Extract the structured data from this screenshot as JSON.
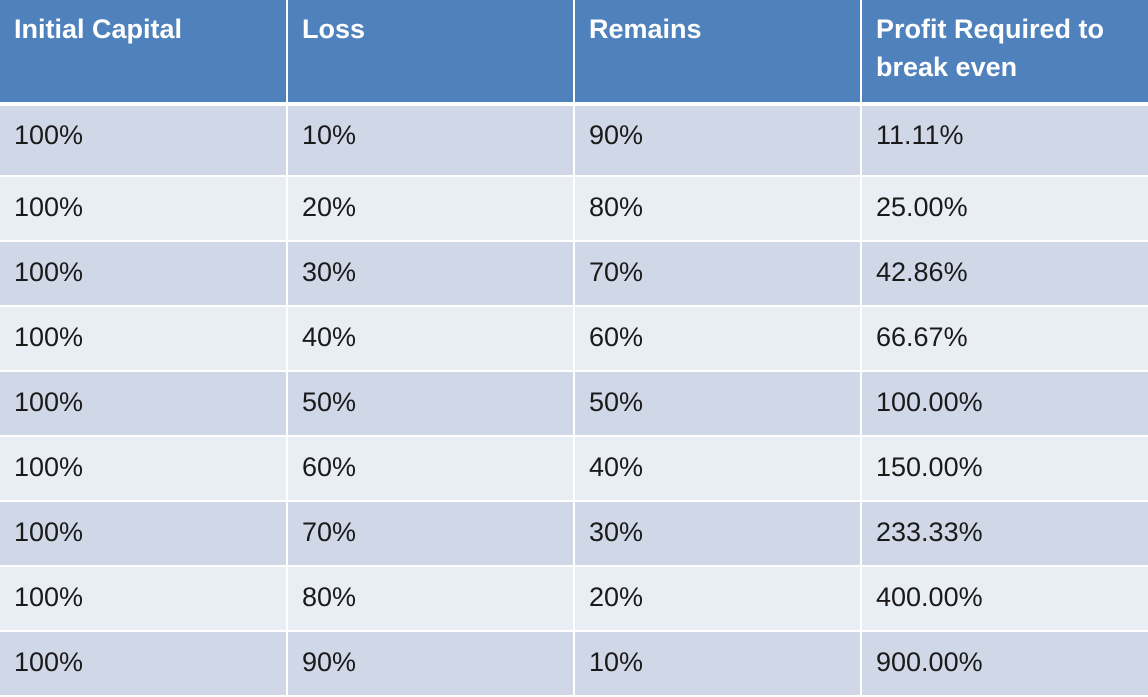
{
  "table": {
    "headers": [
      "Initial Capital",
      "Loss",
      "Remains",
      "Profit Required to break even"
    ],
    "rows": [
      [
        "100%",
        "10%",
        "90%",
        "11.11%"
      ],
      [
        "100%",
        "20%",
        "80%",
        "25.00%"
      ],
      [
        "100%",
        "30%",
        "70%",
        "42.86%"
      ],
      [
        "100%",
        "40%",
        "60%",
        "66.67%"
      ],
      [
        "100%",
        "50%",
        "50%",
        "100.00%"
      ],
      [
        "100%",
        "60%",
        "40%",
        "150.00%"
      ],
      [
        "100%",
        "70%",
        "30%",
        "233.33%"
      ],
      [
        "100%",
        "80%",
        "20%",
        "400.00%"
      ],
      [
        "100%",
        "90%",
        "10%",
        "900.00%"
      ]
    ]
  },
  "colors": {
    "header_bg": "#4f81bd",
    "row_odd_bg": "#d0d8e8",
    "row_even_bg": "#e9edf4",
    "header_text": "#ffffff"
  }
}
